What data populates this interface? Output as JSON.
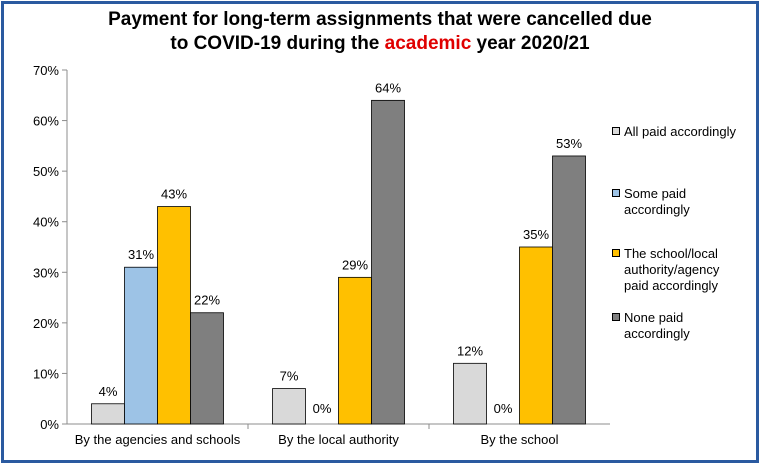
{
  "chart_data": {
    "type": "bar",
    "title_line1": "Payment for long-term assignments that were cancelled due",
    "title_line2_pre": "to COVID-19 during the ",
    "title_line2_highlight": "academic",
    "title_line2_post": " year 2020/21",
    "highlight_color": "#e00000",
    "categories": [
      "By the agencies and schools",
      "By the local authority",
      "By the school"
    ],
    "series": [
      {
        "name": "All paid accordingly",
        "color": "#d9d9d9",
        "values": [
          4,
          7,
          12
        ],
        "labels": [
          "4%",
          "7%",
          "12%"
        ]
      },
      {
        "name": "Some paid accordingly",
        "color": "#9dc3e6",
        "values": [
          31,
          0,
          0
        ],
        "labels": [
          "31%",
          "0%",
          "0%"
        ]
      },
      {
        "name": "The school/local authority/agency paid accordingly",
        "color": "#ffc000",
        "values": [
          43,
          29,
          35
        ],
        "labels": [
          "43%",
          "29%",
          "35%"
        ]
      },
      {
        "name": "None paid accordingly",
        "color": "#7f7f7f",
        "values": [
          22,
          64,
          53
        ],
        "labels": [
          "22%",
          "64%",
          "53%"
        ]
      }
    ],
    "legend_lines": [
      "All paid accordingly",
      "Some paid\naccordingly",
      "The school/local\nauthority/agency\npaid accordingly",
      "None paid\naccordingly"
    ],
    "ylim": [
      0,
      70
    ],
    "yticks": [
      "0%",
      "10%",
      "20%",
      "30%",
      "40%",
      "50%",
      "60%",
      "70%"
    ],
    "legend_position": "right",
    "grid": false
  }
}
